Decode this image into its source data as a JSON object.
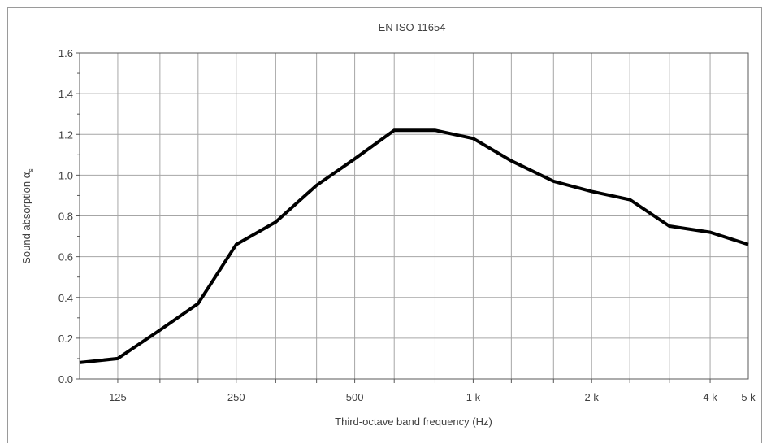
{
  "chart_data": {
    "type": "line",
    "title": "EN ISO 11654",
    "xlabel": "Third-octave band frequency (Hz)",
    "ylabel": "Sound absorption α",
    "ylabel_subscript": "s",
    "x_scale": "log",
    "x_unit": "Hz",
    "x": [
      100,
      125,
      160,
      200,
      250,
      315,
      400,
      500,
      630,
      800,
      1000,
      1250,
      1600,
      2000,
      2500,
      3150,
      4000,
      5000
    ],
    "series": [
      {
        "values": [
          0.08,
          0.1,
          0.24,
          0.37,
          0.66,
          0.77,
          0.95,
          1.08,
          1.22,
          1.22,
          1.18,
          1.07,
          0.97,
          0.92,
          0.88,
          0.75,
          0.72,
          0.66
        ]
      }
    ],
    "x_tick_labels": [
      {
        "x": 125,
        "label": "125"
      },
      {
        "x": 250,
        "label": "250"
      },
      {
        "x": 500,
        "label": "500"
      },
      {
        "x": 1000,
        "label": "1 k"
      },
      {
        "x": 2000,
        "label": "2 k"
      },
      {
        "x": 4000,
        "label": "4 k"
      },
      {
        "x": 5000,
        "label": "5 k"
      }
    ],
    "y_ticks": [
      "0.0",
      "0.2",
      "0.4",
      "0.6",
      "0.8",
      "1.0",
      "1.2",
      "1.4",
      "1.6"
    ],
    "ylim": [
      0,
      1.6
    ],
    "grid": true,
    "colors": {
      "line": "#000000",
      "grid": "#a6a6a6",
      "axis": "#595959"
    }
  }
}
